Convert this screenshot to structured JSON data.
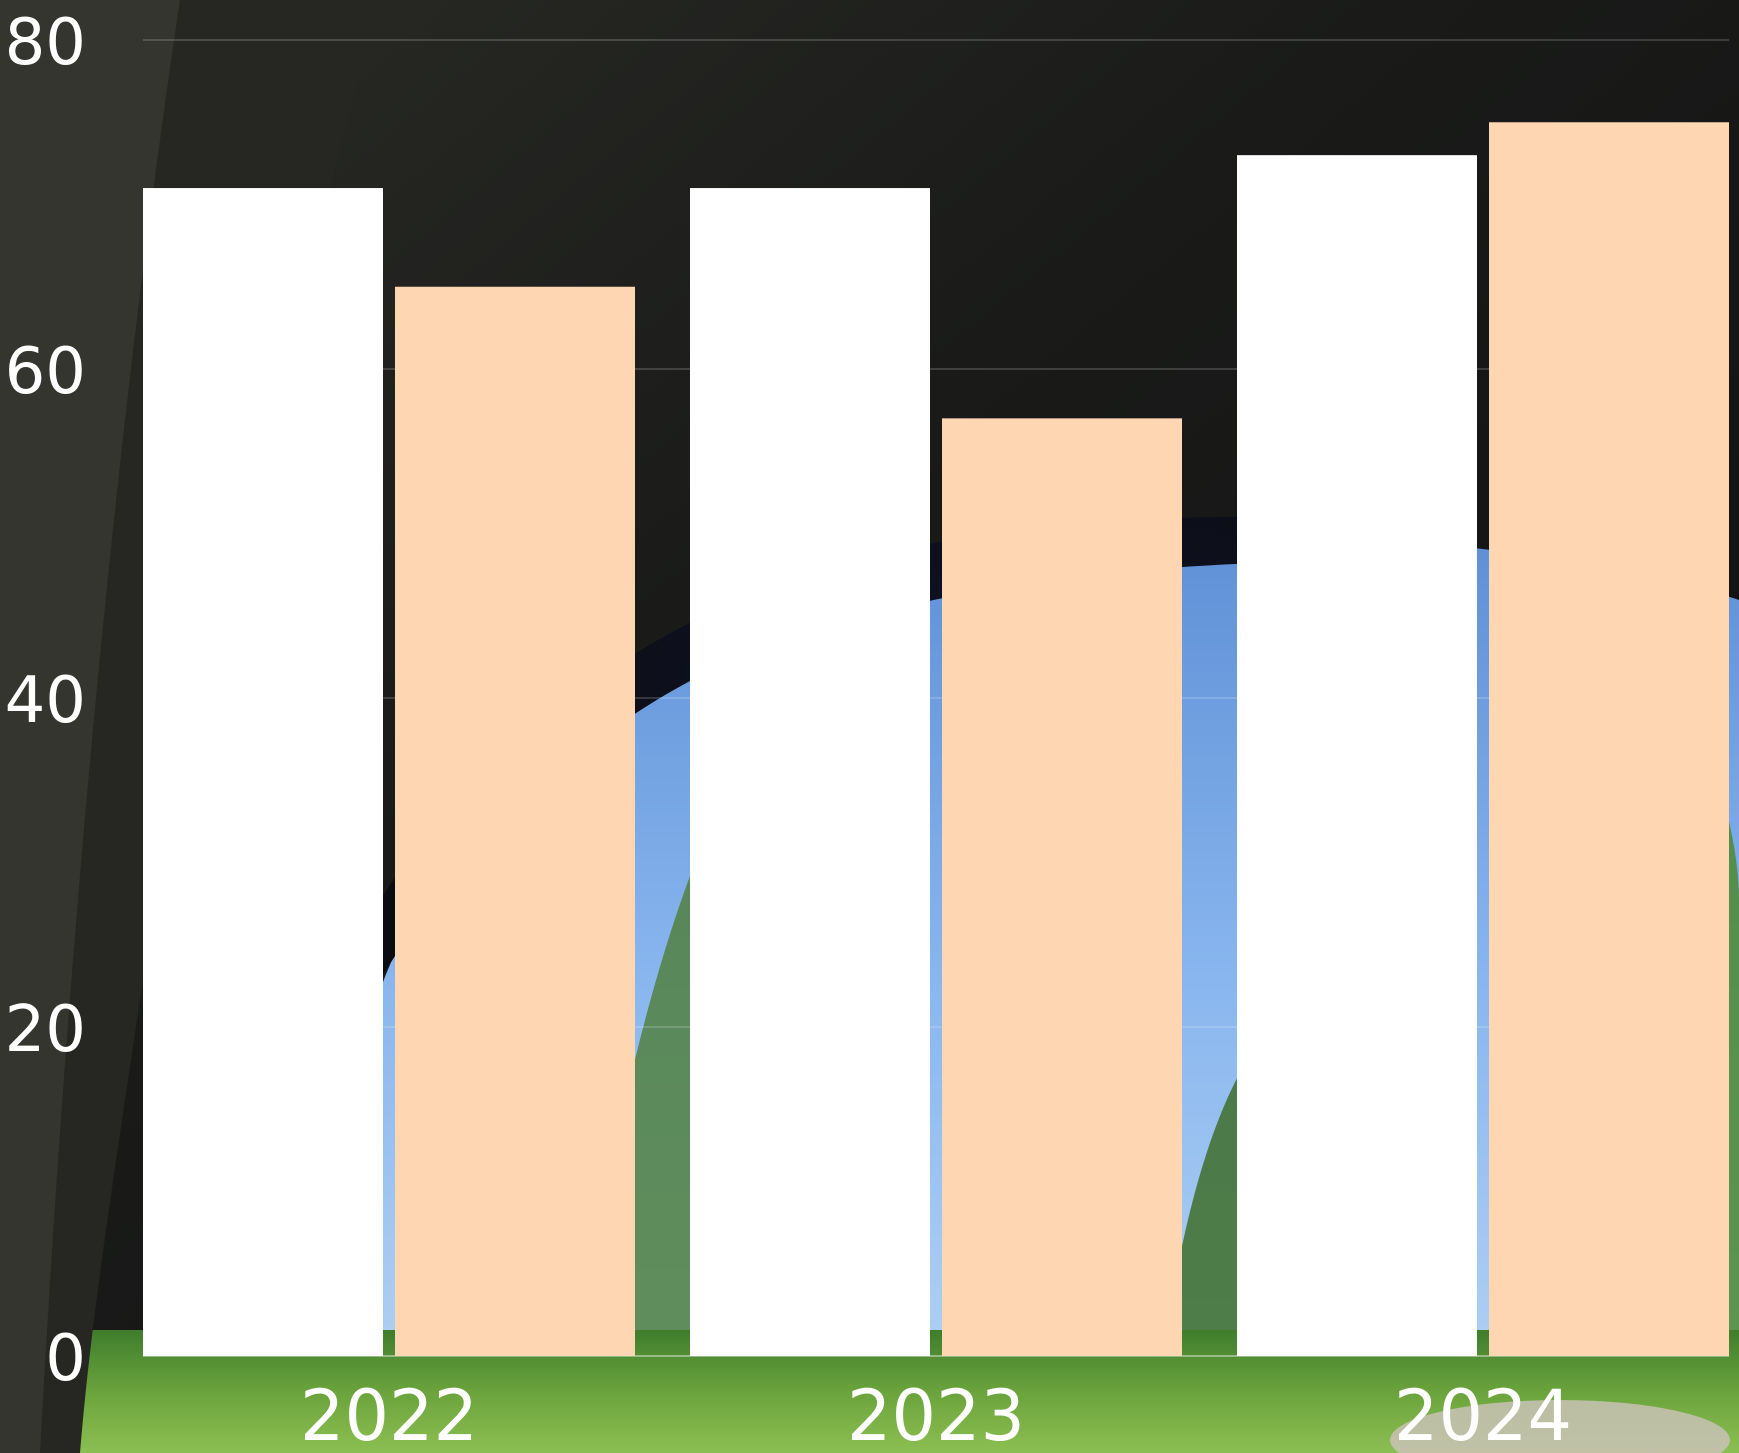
{
  "chart_data": {
    "type": "bar",
    "categories": [
      "2022",
      "2023",
      "2024"
    ],
    "series": [
      {
        "values": [
          71,
          71,
          73
        ],
        "color": "#ffffff"
      },
      {
        "values": [
          65,
          57,
          75
        ],
        "color": "#fed6b2"
      }
    ],
    "ylim": [
      0,
      80
    ],
    "yticks": [
      0,
      20,
      40,
      60,
      80
    ],
    "grid": true,
    "legend": "none",
    "background": "photo of a sky seen through a dark rock arch over green grass"
  }
}
